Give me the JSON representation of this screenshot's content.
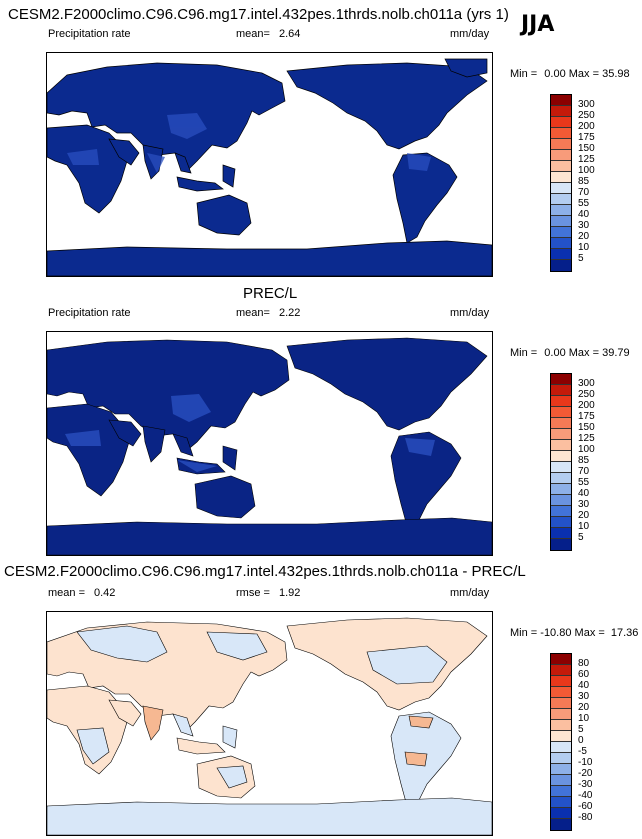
{
  "season": "JJA",
  "panel1": {
    "title": "CESM2.F2000climo.C96.C96.mg17.intel.432pes.1thrds.nolb.ch011a (yrs 1)",
    "variable": "Precipitation rate",
    "mean_label": "mean=",
    "mean": "2.64",
    "units": "mm/day",
    "min_label": "Min =",
    "min": "0.00",
    "max_label": "Max =",
    "max": "35.98"
  },
  "panel2": {
    "title": "PREC/L",
    "variable": "Precipitation rate",
    "mean_label": "mean=",
    "mean": "2.22",
    "units": "mm/day",
    "min_label": "Min =",
    "min": "0.00",
    "max_label": "Max =",
    "max": "39.79"
  },
  "panel3": {
    "title": "CESM2.F2000climo.C96.C96.mg17.intel.432pes.1thrds.nolb.ch011a - PREC/L",
    "mean_label": "mean =",
    "mean": "0.42",
    "rmse_label": "rmse =",
    "rmse": "1.92",
    "units": "mm/day",
    "min_label": "Min =",
    "min": "-10.80",
    "max_label": "Max =",
    "max": "17.36"
  },
  "colorbar_abs": {
    "labels": [
      "300",
      "250",
      "200",
      "175",
      "150",
      "125",
      "100",
      "85",
      "70",
      "55",
      "40",
      "30",
      "20",
      "10",
      "5"
    ],
    "colors": [
      "#8b0000",
      "#c41a0a",
      "#e8381b",
      "#f25a35",
      "#f57a56",
      "#f89b7a",
      "#fbbfa0",
      "#fde6d2",
      "#d7e6f7",
      "#b3cdf0",
      "#8db0e8",
      "#6a93e0",
      "#4273d8",
      "#2352c8",
      "#0a30b0",
      "#051f8a"
    ]
  },
  "colorbar_diff": {
    "labels": [
      "80",
      "60",
      "40",
      "30",
      "20",
      "10",
      "5",
      "0",
      "-5",
      "-10",
      "-20",
      "-30",
      "-40",
      "-60",
      "-80"
    ],
    "colors": [
      "#8b0000",
      "#c41a0a",
      "#e8381b",
      "#f25a35",
      "#f57a56",
      "#f89b7a",
      "#fbbfa0",
      "#fde6d2",
      "#d7e6f7",
      "#b3cdf0",
      "#8db0e8",
      "#6a93e0",
      "#4273d8",
      "#2352c8",
      "#0a30b0",
      "#051f8a"
    ]
  },
  "map_colors": {
    "ocean": "#ffffff",
    "land_prec_model": "#0b2a8f",
    "land_prec_obs": "#0a2485",
    "wet_region": "#2a4fc0",
    "diff_positive": "#fde3cf",
    "diff_negative": "#d8e7f8",
    "diff_strong_positive": "#f6b892",
    "coastline": "#000000"
  }
}
